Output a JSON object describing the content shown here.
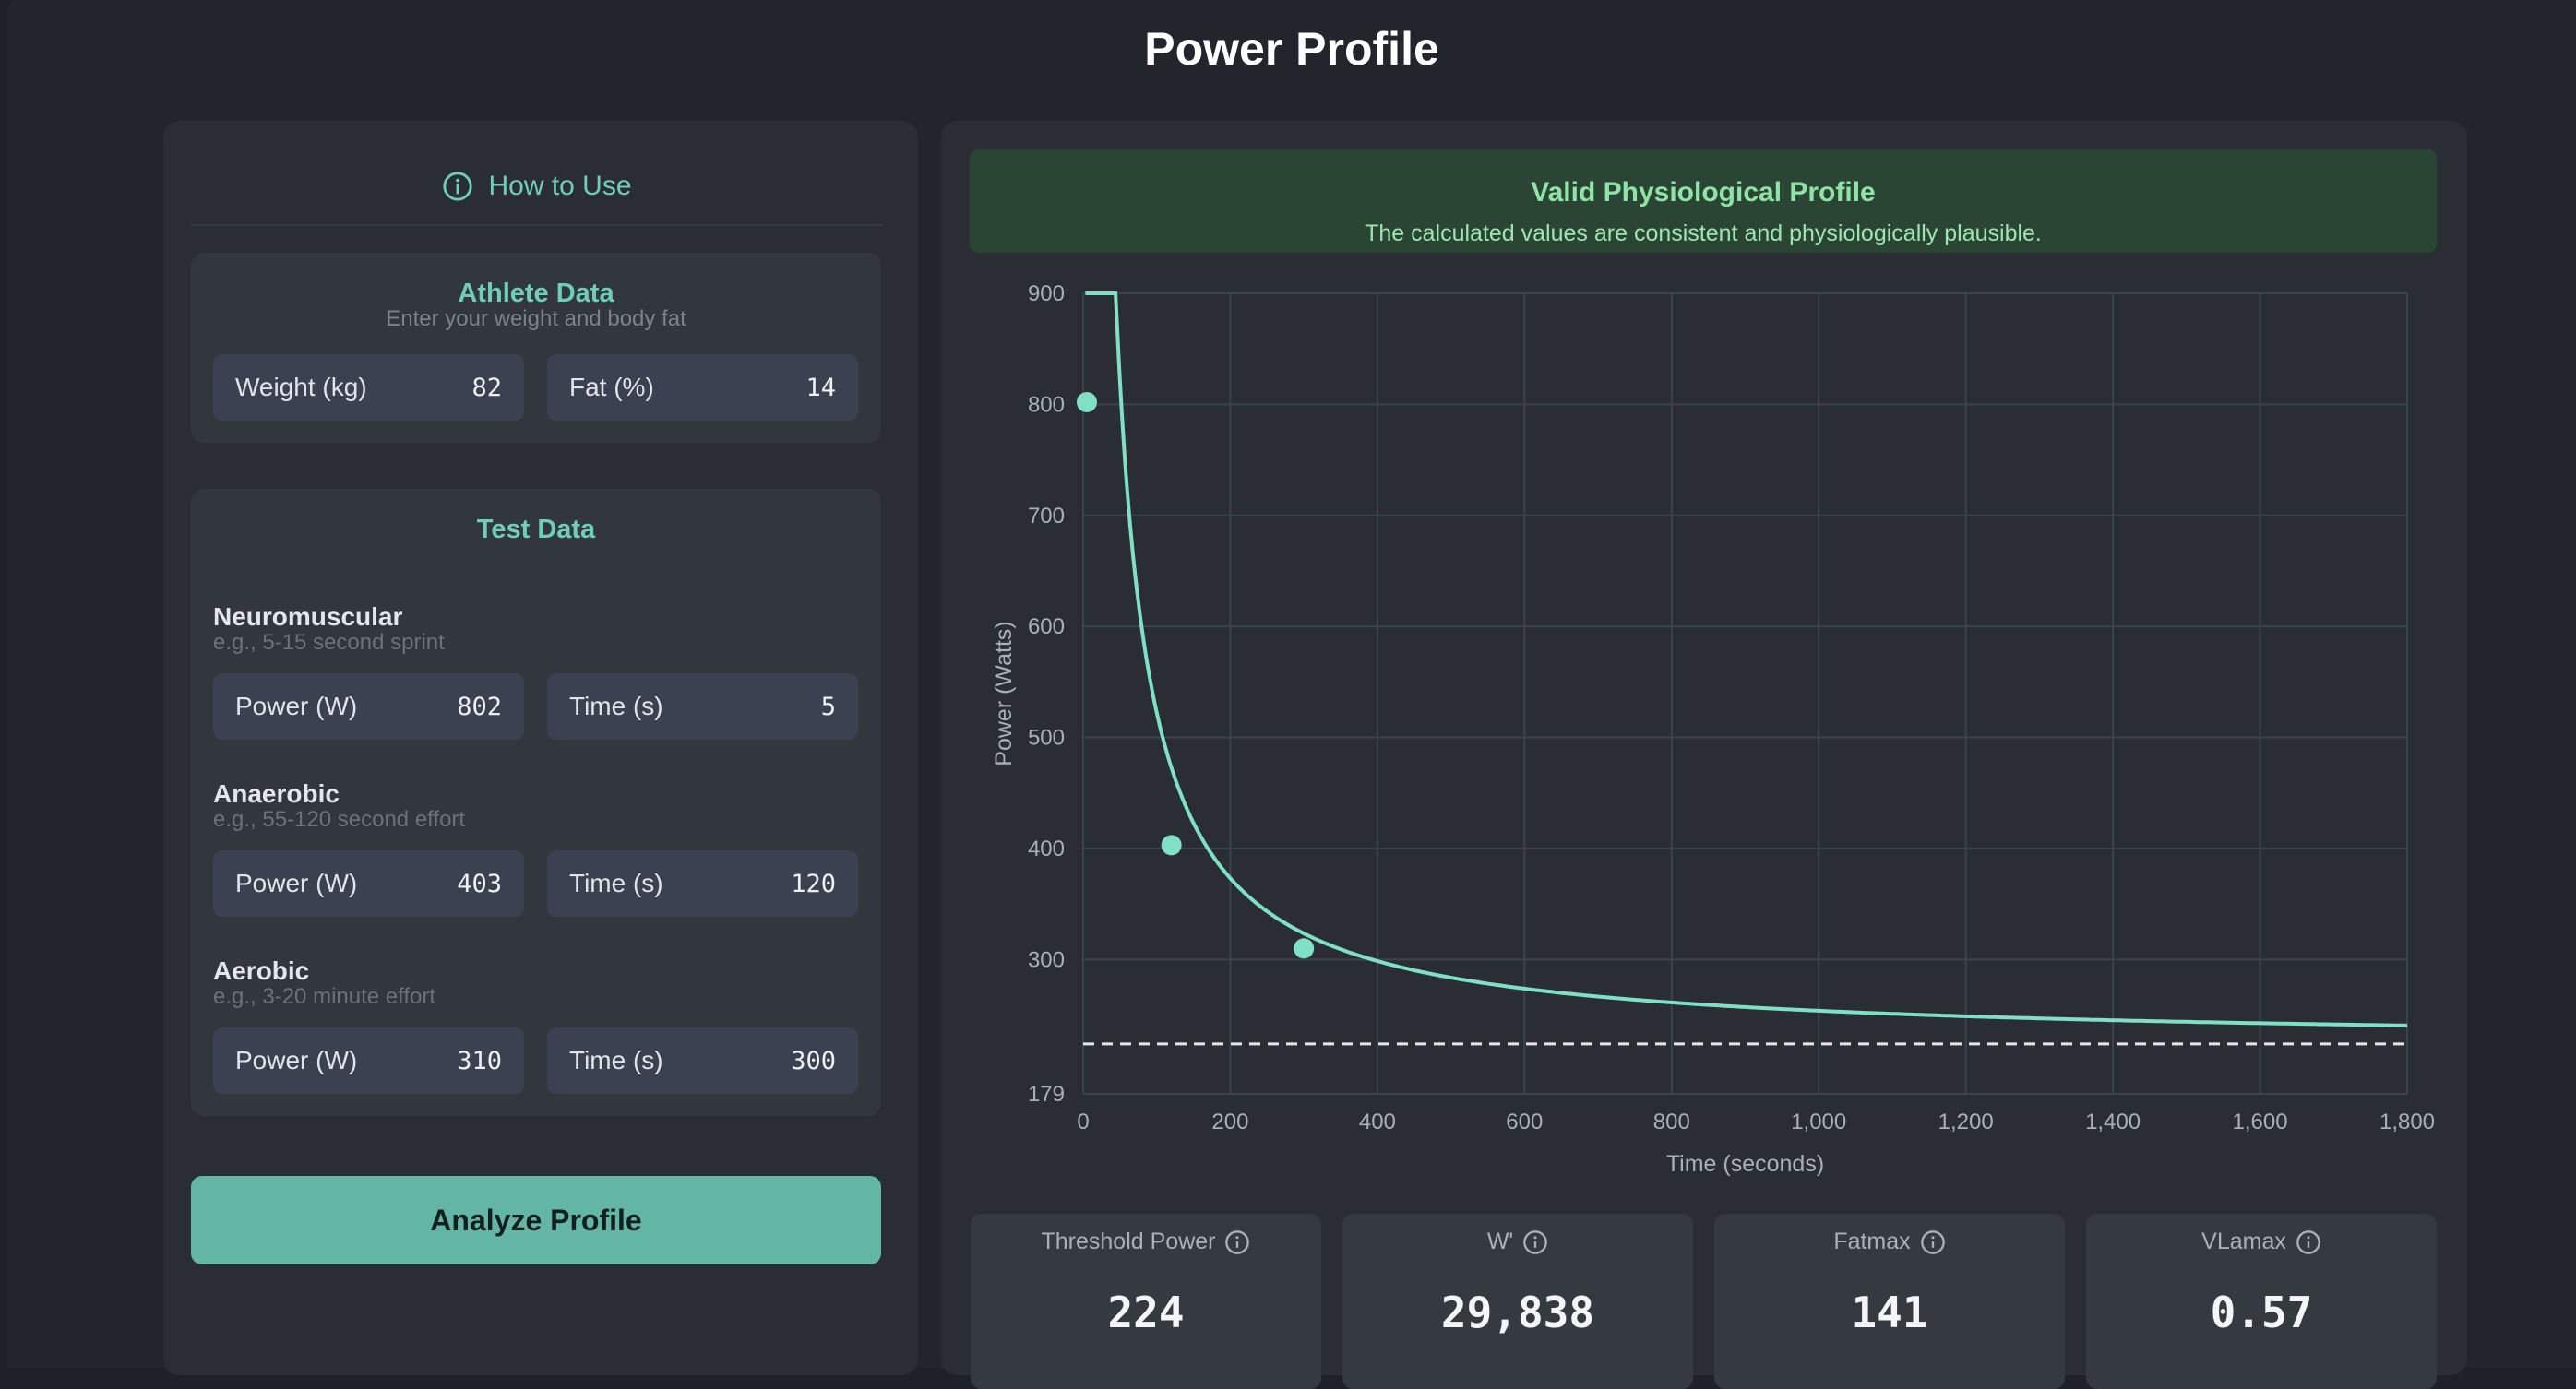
{
  "page": {
    "title": "Power Profile"
  },
  "help": {
    "label": "How to Use"
  },
  "athlete": {
    "title": "Athlete Data",
    "subtitle": "Enter your weight and body fat",
    "weight_label": "Weight (kg)",
    "weight_value": "82",
    "fat_label": "Fat (%)",
    "fat_value": "14"
  },
  "tests": {
    "title": "Test Data",
    "sections": [
      {
        "name": "Neuromuscular",
        "hint": "e.g., 5-15 second sprint",
        "power_label": "Power (W)",
        "power_value": "802",
        "time_label": "Time (s)",
        "time_value": "5"
      },
      {
        "name": "Anaerobic",
        "hint": "e.g., 55-120 second effort",
        "power_label": "Power (W)",
        "power_value": "403",
        "time_label": "Time (s)",
        "time_value": "120"
      },
      {
        "name": "Aerobic",
        "hint": "e.g., 3-20 minute effort",
        "power_label": "Power (W)",
        "power_value": "310",
        "time_label": "Time (s)",
        "time_value": "300"
      }
    ]
  },
  "actions": {
    "analyze_label": "Analyze Profile"
  },
  "status": {
    "title": "Valid Physiological Profile",
    "message": "The calculated values are consistent and physiologically plausible.",
    "color": "#8fe3a6"
  },
  "chart_data": {
    "type": "line",
    "xlabel": "Time (seconds)",
    "ylabel": "Power (Watts)",
    "xlim": [
      0,
      1800
    ],
    "ylim": [
      179,
      900
    ],
    "x_ticks": [
      "0",
      "200",
      "400",
      "600",
      "800",
      "1,000",
      "1,200",
      "1,400",
      "1,600",
      "1,800"
    ],
    "y_ticks": [
      "179",
      "300",
      "400",
      "500",
      "600",
      "700",
      "800",
      "900"
    ],
    "grid": true,
    "curve_model": {
      "cp": 224,
      "w_prime": 29838
    },
    "curve_start_s": 3,
    "test_points": [
      {
        "x": 5,
        "y": 802
      },
      {
        "x": 120,
        "y": 403
      },
      {
        "x": 300,
        "y": 310
      }
    ],
    "threshold_line": 224,
    "curve_color": "#7fe0c4",
    "threshold_color": "#e6e6e6"
  },
  "metrics": [
    {
      "label": "Threshold Power",
      "value": "224"
    },
    {
      "label": "W'",
      "value": "29,838"
    },
    {
      "label": "Fatmax",
      "value": "141"
    },
    {
      "label": "VLamax",
      "value": "0.57"
    }
  ]
}
